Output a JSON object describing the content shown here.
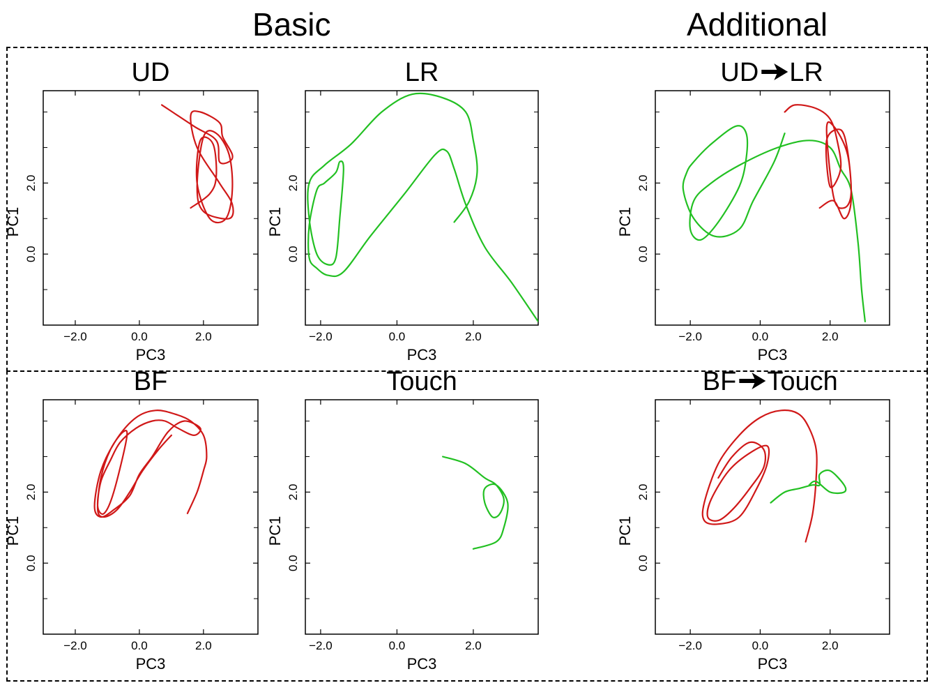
{
  "headings": {
    "basic": "Basic",
    "additional": "Additional"
  },
  "colors": {
    "red": "#d01818",
    "green": "#22c022",
    "axis": "#000000"
  },
  "chart_data": [
    {
      "type": "line",
      "title": "UD",
      "xlabel": "PC3",
      "ylabel": "PC1",
      "xlim": [
        -3.0,
        3.7
      ],
      "ylim": [
        -2.0,
        4.6
      ],
      "xticks": [
        -2.0,
        0.0,
        2.0
      ],
      "xtick_labels": [
        "−2.0",
        "0.0",
        "2.0"
      ],
      "yticks": [
        0.0,
        2.0
      ],
      "ytick_labels": [
        "0.0",
        "2.0"
      ],
      "series": [
        {
          "color": "red",
          "x": [
            0.7,
            1.7,
            2.4,
            2.5,
            2.8,
            2.9,
            2.6,
            2.5,
            1.9,
            1.6,
            1.8,
            2.5,
            2.9,
            2.8,
            2.0,
            1.8,
            2.0,
            2.4,
            2.8,
            2.9,
            2.7,
            2.2,
            1.8,
            1.9,
            2.3,
            2.4,
            2.2,
            1.6
          ],
          "y": [
            4.2,
            3.6,
            3.2,
            2.6,
            2.6,
            2.8,
            3.3,
            3.7,
            4.0,
            3.9,
            3.0,
            2.0,
            1.4,
            1.0,
            1.2,
            1.9,
            3.3,
            3.4,
            2.8,
            1.8,
            1.0,
            1.0,
            2.0,
            3.2,
            3.1,
            2.2,
            1.7,
            1.3
          ]
        }
      ]
    },
    {
      "type": "line",
      "title": "LR",
      "xlabel": "PC3",
      "ylabel": "PC1",
      "xlim": [
        -2.4,
        3.7
      ],
      "ylim": [
        -2.0,
        4.6
      ],
      "xticks": [
        -2.0,
        0.0,
        2.0
      ],
      "xtick_labels": [
        "−2.0",
        "0.0",
        "2.0"
      ],
      "yticks": [
        0.0,
        2.0
      ],
      "ytick_labels": [
        "0.0",
        "2.0"
      ],
      "series": [
        {
          "color": "green",
          "x": [
            1.5,
            1.9,
            2.1,
            2.0,
            1.8,
            1.2,
            0.4,
            -0.4,
            -1.2,
            -1.9,
            -2.3,
            -2.3,
            -2.1,
            -1.8,
            -1.6,
            -1.5,
            -1.4,
            -1.5,
            -1.6,
            -1.9,
            -2.1,
            -2.3,
            -2.3,
            -2.1,
            -1.8,
            -1.4,
            -0.7,
            0.2,
            1.0,
            1.3,
            1.5,
            1.8,
            2.3,
            3.0,
            3.7
          ],
          "y": [
            0.9,
            1.5,
            2.3,
            3.2,
            4.0,
            4.4,
            4.5,
            4.0,
            3.1,
            2.5,
            2.0,
            1.0,
            0.0,
            -0.3,
            -0.1,
            1.0,
            2.4,
            2.6,
            2.3,
            2.0,
            1.8,
            0.8,
            -0.1,
            -0.4,
            -0.6,
            -0.5,
            0.5,
            1.7,
            2.8,
            2.9,
            2.4,
            1.4,
            0.2,
            -0.8,
            -1.9
          ]
        }
      ]
    },
    {
      "type": "line",
      "title": "UD➔LR",
      "xlabel": "PC3",
      "ylabel": "PC1",
      "xlim": [
        -3.0,
        3.7
      ],
      "ylim": [
        -2.0,
        4.6
      ],
      "xticks": [
        -2.0,
        0.0,
        2.0
      ],
      "xtick_labels": [
        "−2.0",
        "0.0",
        "2.0"
      ],
      "yticks": [
        0.0,
        2.0
      ],
      "ytick_labels": [
        "0.0",
        "2.0"
      ],
      "series": [
        {
          "color": "green",
          "x": [
            3.0,
            2.9,
            2.8,
            2.6,
            2.3,
            2.0,
            1.4,
            0.5,
            -0.6,
            -1.4,
            -1.9,
            -2.0,
            -1.7,
            -1.2,
            -0.6,
            -0.4,
            -0.4,
            -0.7,
            -1.4,
            -1.9,
            -2.1,
            -2.2,
            -1.9,
            -1.3,
            -0.6,
            -0.2,
            0.4,
            0.7
          ],
          "y": [
            -1.9,
            -1.0,
            0.3,
            1.8,
            2.4,
            3.0,
            3.2,
            3.0,
            2.5,
            2.0,
            1.5,
            0.7,
            0.4,
            0.9,
            1.9,
            2.7,
            3.4,
            3.6,
            3.1,
            2.6,
            2.3,
            1.8,
            1.0,
            0.5,
            0.7,
            1.5,
            2.6,
            3.4
          ]
        },
        {
          "color": "red",
          "x": [
            0.7,
            1.0,
            1.6,
            2.0,
            2.2,
            2.3,
            2.0,
            1.9,
            2.3,
            2.5,
            2.6,
            2.4,
            2.1,
            1.9,
            2.1,
            2.5,
            2.6,
            2.4,
            2.1,
            1.7
          ],
          "y": [
            4.0,
            4.2,
            4.1,
            3.8,
            3.2,
            2.4,
            1.9,
            3.2,
            3.5,
            2.9,
            1.7,
            1.3,
            1.6,
            3.5,
            3.6,
            2.8,
            1.5,
            1.0,
            1.5,
            1.3
          ]
        }
      ]
    },
    {
      "type": "line",
      "title": "BF",
      "xlabel": "PC3",
      "ylabel": "PC1",
      "xlim": [
        -3.0,
        3.7
      ],
      "ylim": [
        -2.0,
        4.6
      ],
      "xticks": [
        -2.0,
        0.0,
        2.0
      ],
      "xtick_labels": [
        "−2.0",
        "0.0",
        "2.0"
      ],
      "yticks": [
        0.0,
        2.0
      ],
      "ytick_labels": [
        "0.0",
        "2.0"
      ],
      "series": [
        {
          "color": "red",
          "x": [
            1.5,
            1.8,
            2.0,
            2.1,
            2.0,
            1.6,
            1.1,
            0.5,
            -0.1,
            -0.7,
            -1.2,
            -1.4,
            -1.2,
            -0.8,
            -0.3,
            0.0,
            0.4,
            0.9,
            1.4,
            1.9,
            1.7,
            1.2,
            0.8,
            0.4,
            -0.1,
            -0.6,
            -0.9,
            -1.2,
            -1.3,
            -1.1,
            -0.8,
            -0.4,
            -0.5,
            -0.9,
            -1.2,
            -1.3,
            -1.1,
            -0.7,
            -0.3,
            0.1,
            0.6,
            1.0
          ],
          "y": [
            1.4,
            2.0,
            2.6,
            3.0,
            3.6,
            4.0,
            4.2,
            4.3,
            4.1,
            3.5,
            2.6,
            1.6,
            1.3,
            1.5,
            1.9,
            2.5,
            3.0,
            3.7,
            4.0,
            3.8,
            3.6,
            3.8,
            4.0,
            4.0,
            3.8,
            3.4,
            2.9,
            2.3,
            1.6,
            1.4,
            2.0,
            3.5,
            3.7,
            3.2,
            2.4,
            1.5,
            1.3,
            1.5,
            2.0,
            2.6,
            3.2,
            3.6
          ]
        }
      ]
    },
    {
      "type": "line",
      "title": "Touch",
      "xlabel": "PC3",
      "ylabel": "PC1",
      "xlim": [
        -2.4,
        3.7
      ],
      "ylim": [
        -2.0,
        4.6
      ],
      "xticks": [
        -2.0,
        0.0,
        2.0
      ],
      "xtick_labels": [
        "−2.0",
        "0.0",
        "2.0"
      ],
      "yticks": [
        0.0,
        2.0
      ],
      "ytick_labels": [
        "0.0",
        "2.0"
      ],
      "series": [
        {
          "color": "green",
          "x": [
            1.2,
            1.8,
            2.3,
            2.6,
            2.8,
            2.7,
            2.5,
            2.3,
            2.3,
            2.6,
            2.9,
            2.8,
            2.6,
            2.0
          ],
          "y": [
            3.0,
            2.8,
            2.4,
            2.2,
            1.8,
            1.4,
            1.3,
            1.7,
            2.1,
            2.2,
            1.7,
            1.0,
            0.6,
            0.4
          ]
        }
      ]
    },
    {
      "type": "line",
      "title": "BF➔Touch",
      "xlabel": "PC3",
      "ylabel": "PC1",
      "xlim": [
        -3.0,
        3.7
      ],
      "ylim": [
        -2.0,
        4.6
      ],
      "xticks": [
        -2.0,
        0.0,
        2.0
      ],
      "xtick_labels": [
        "−2.0",
        "0.0",
        "2.0"
      ],
      "yticks": [
        0.0,
        2.0
      ],
      "ytick_labels": [
        "0.0",
        "2.0"
      ],
      "series": [
        {
          "color": "red",
          "x": [
            1.3,
            1.5,
            1.6,
            1.6,
            1.4,
            1.1,
            0.6,
            0.0,
            -0.6,
            -1.2,
            -1.6,
            -1.6,
            -1.2,
            -0.6,
            -0.1,
            0.2,
            0.2,
            -0.3,
            -0.9,
            -1.4,
            -1.5,
            -1.2,
            -0.8,
            -0.3,
            0.1,
            0.1,
            -0.3,
            -0.8,
            -1.2
          ],
          "y": [
            0.6,
            1.4,
            2.4,
            3.2,
            3.8,
            4.2,
            4.3,
            4.1,
            3.6,
            2.8,
            1.7,
            1.2,
            1.1,
            1.3,
            2.1,
            2.8,
            3.3,
            3.1,
            2.6,
            1.8,
            1.3,
            1.2,
            1.5,
            2.1,
            2.7,
            3.2,
            3.4,
            3.0,
            2.4
          ]
        },
        {
          "color": "green",
          "x": [
            0.3,
            0.7,
            1.1,
            1.5,
            1.7,
            1.7,
            2.0,
            2.4,
            2.4,
            2.0,
            1.6,
            1.4
          ],
          "y": [
            1.7,
            2.0,
            2.1,
            2.2,
            2.2,
            2.5,
            2.6,
            2.2,
            2.0,
            2.0,
            2.3,
            2.2
          ]
        }
      ]
    }
  ]
}
